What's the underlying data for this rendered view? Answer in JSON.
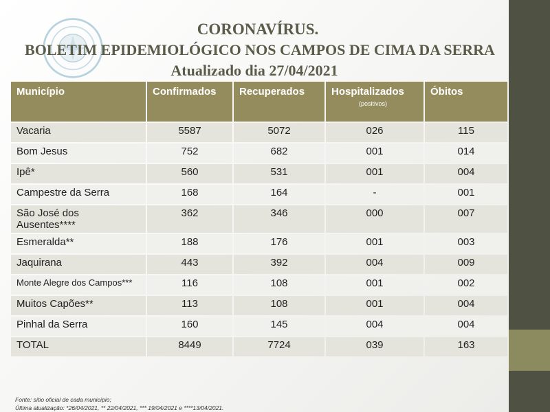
{
  "header": {
    "line1": "CORONAVÍRUS.",
    "line2": "BOLETIM EPIDEMIOLÓGICO NOS  CAMPOS DE CIMA DA SERRA",
    "line3": "Atualizado dia 27/04/2021"
  },
  "seal": {
    "icon": "municipal-seal"
  },
  "colors": {
    "header": "#958c5d",
    "sidebar": "#4f5243",
    "accent": "#8c8a5f",
    "row_odd": "#e4e4dd",
    "row_even": "#f0f0ec"
  },
  "table": {
    "columns": {
      "municipio": "Município",
      "confirmados": "Confirmados",
      "recuperados": "Recuperados",
      "hospitalizados": "Hospitalizados",
      "hospitalizados_sub": "(positivos)",
      "obitos": "Óbitos"
    },
    "rows": [
      {
        "municipio": "Vacaria",
        "confirmados": "5587",
        "recuperados": "5072",
        "hospitalizados": "026",
        "obitos": "115"
      },
      {
        "municipio": "Bom Jesus",
        "confirmados": "752",
        "recuperados": "682",
        "hospitalizados": "001",
        "obitos": "014"
      },
      {
        "municipio": "Ipê*",
        "confirmados": "560",
        "recuperados": "531",
        "hospitalizados": "001",
        "obitos": "004"
      },
      {
        "municipio": "Campestre da Serra",
        "confirmados": "168",
        "recuperados": "164",
        "hospitalizados": "-",
        "obitos": "001"
      },
      {
        "municipio": "São José dos Ausentes****",
        "confirmados": "362",
        "recuperados": "346",
        "hospitalizados": "000",
        "obitos": "007"
      },
      {
        "municipio": "Esmeralda**",
        "confirmados": "188",
        "recuperados": "176",
        "hospitalizados": "001",
        "obitos": "003"
      },
      {
        "municipio": "Jaquirana",
        "confirmados": "443",
        "recuperados": "392",
        "hospitalizados": "004",
        "obitos": "009"
      },
      {
        "municipio": "Monte Alegre dos Campos***",
        "confirmados": "116",
        "recuperados": "108",
        "hospitalizados": "001",
        "obitos": "002"
      },
      {
        "municipio": "Muitos Capões**",
        "confirmados": "113",
        "recuperados": "108",
        "hospitalizados": "001",
        "obitos": "004"
      },
      {
        "municipio": "Pinhal da Serra",
        "confirmados": "160",
        "recuperados": "145",
        "hospitalizados": "004",
        "obitos": "004"
      },
      {
        "municipio": "TOTAL",
        "confirmados": "8449",
        "recuperados": "7724",
        "hospitalizados": "039",
        "obitos": "163"
      }
    ]
  },
  "footnotes": {
    "source": "Fonte: sítio oficial de cada município;",
    "update": "Última atualização: *26/04/2021, ** 22/04/2021, *** 19/04/2021 e ****13/04/2021."
  }
}
